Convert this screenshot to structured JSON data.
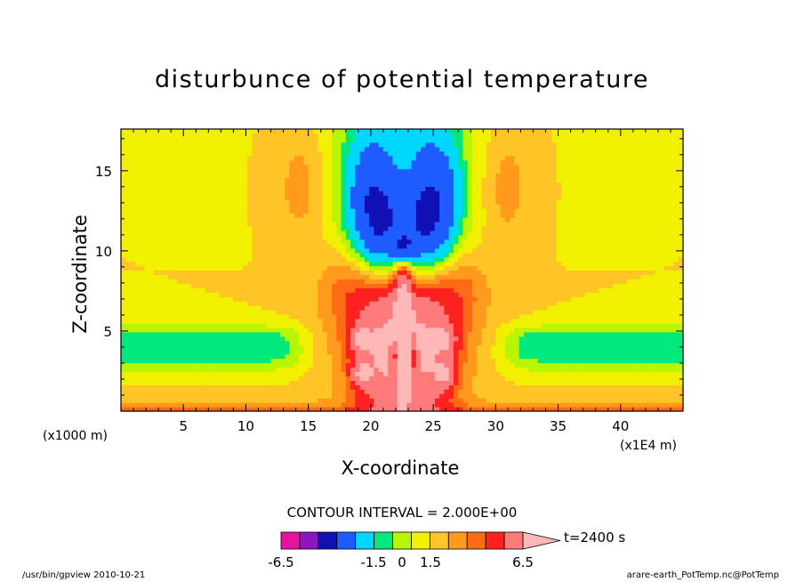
{
  "chart_data": {
    "type": "heatmap",
    "title": "disturbunce of potential temperature",
    "xlabel": "X-coordinate",
    "ylabel": "Z-coordinate",
    "x_unit_label": "(x1000 m)",
    "y_unit_label": "(x1E4 m)",
    "xlim": [
      0,
      45
    ],
    "ylim": [
      0,
      17.6
    ],
    "x_ticks": [
      "5",
      "10",
      "15",
      "20",
      "25",
      "30",
      "35",
      "40"
    ],
    "x_tick_values": [
      5,
      10,
      15,
      20,
      25,
      30,
      35,
      40
    ],
    "y_ticks": [
      "5",
      "10",
      "15"
    ],
    "y_tick_values": [
      5,
      10,
      15
    ],
    "contour_interval_label": "CONTOUR INTERVAL = 2.000E+00",
    "time_label": "t=2400 s",
    "colorbar": {
      "labels": [
        "-6.5",
        "-1.5",
        "0",
        "1.5",
        "6.5"
      ],
      "label_values": [
        -6.5,
        -1.5,
        0,
        1.5,
        6.5
      ],
      "colors": [
        "#e8129f",
        "#8b17c0",
        "#1010b5",
        "#1e5cff",
        "#00d7ff",
        "#00e87c",
        "#b8f500",
        "#f0f000",
        "#ffc425",
        "#ff9a1c",
        "#ff6a14",
        "#ff2020",
        "#ff7b7b",
        "#ffb8b8"
      ],
      "bounds": [
        -8.5,
        -6.5,
        -4.5,
        -2.5,
        -1.5,
        -1.0,
        -0.5,
        0,
        0.5,
        1.0,
        1.5,
        2.5,
        4.5,
        6.5
      ]
    },
    "features": [
      {
        "kind": "band",
        "value": -1.2,
        "z_center": 3.8,
        "note": "cold horizontal layer left"
      },
      {
        "kind": "band",
        "value": -1.2,
        "z_center": 3.8,
        "note": "cold horizontal layer right"
      },
      {
        "kind": "plume",
        "value": -3.5,
        "x_center": 22.6,
        "z_range": [
          8,
          17.6
        ]
      },
      {
        "kind": "plume",
        "value": 3.5,
        "x_center": 22.6,
        "z_range": [
          0,
          8
        ]
      },
      {
        "kind": "blob",
        "value": 0.8,
        "x": 14.5,
        "z": 14.5
      },
      {
        "kind": "blob",
        "value": 0.8,
        "x": 30.7,
        "z": 14.5
      }
    ]
  },
  "footer": {
    "left": "/usr/bin/gpview  2010-10-21",
    "right": "arare-earth_PotTemp.nc@PotTemp"
  }
}
